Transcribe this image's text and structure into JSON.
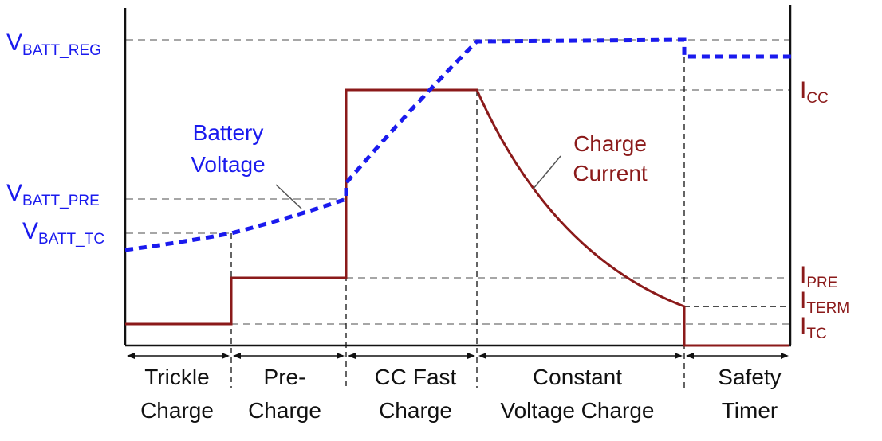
{
  "left_labels": {
    "vbatt_reg": {
      "main": "V",
      "sub": "BATT_REG"
    },
    "vbatt_pre": {
      "main": "V",
      "sub": "BATT_PRE"
    },
    "vbatt_tc": {
      "main": "V",
      "sub": "BATT_TC"
    }
  },
  "right_labels": {
    "icc": {
      "main": "I",
      "sub": "CC"
    },
    "ipre": {
      "main": "I",
      "sub": "PRE"
    },
    "iterm": {
      "main": "I",
      "sub": "TERM"
    },
    "itc": {
      "main": "I",
      "sub": "TC"
    }
  },
  "annotations": {
    "battery_voltage": [
      "Battery",
      "Voltage"
    ],
    "charge_current": [
      "Charge",
      "Current"
    ]
  },
  "phases": [
    {
      "line1": "Trickle",
      "line2": "Charge"
    },
    {
      "line1": "Pre-",
      "line2": "Charge"
    },
    {
      "line1": "CC Fast",
      "line2": "Charge"
    },
    {
      "line1": "Constant",
      "line2": "Voltage Charge"
    },
    {
      "line1": "Safety",
      "line2": "Timer"
    }
  ],
  "colors": {
    "voltage": "#1a1aee",
    "current": "#8b1a1a",
    "guides": "#888888",
    "axis": "#111111"
  }
}
